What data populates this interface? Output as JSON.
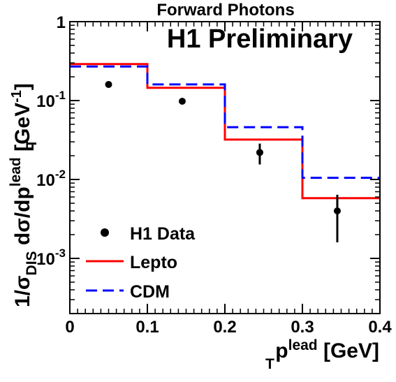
{
  "chart_data": {
    "type": "line",
    "title": "Forward Photons",
    "annotation": "H1 Preliminary",
    "xlabel": {
      "base": "p",
      "sub": "T",
      "sup": "lead",
      "unit": " [GeV]"
    },
    "ylabel": {
      "prefix": "1/σ",
      "prefix_sub": "DIS",
      "mid": " dσ/dp",
      "mid_sub": "T",
      "mid_sup": "lead",
      "unit": " [GeV",
      "unit_sup": "-1",
      "unit_close": "]"
    },
    "x_range": [
      0,
      0.4
    ],
    "y_range": [
      0.0002,
      1
    ],
    "y_scale": "log",
    "x_ticks": [
      {
        "value": 0,
        "label": "0"
      },
      {
        "value": 0.1,
        "label": "0.1"
      },
      {
        "value": 0.2,
        "label": "0.2"
      },
      {
        "value": 0.3,
        "label": "0.3"
      },
      {
        "value": 0.4,
        "label": "0.4"
      }
    ],
    "y_ticks": [
      {
        "value": 1,
        "label": "1"
      },
      {
        "value": 0.1,
        "label": "10",
        "sup": "-1"
      },
      {
        "value": 0.01,
        "label": "10",
        "sup": "-2"
      },
      {
        "value": 0.001,
        "label": "10",
        "sup": "-3"
      }
    ],
    "legend_position": "bottom-left",
    "bin_edges": [
      0,
      0.1,
      0.2,
      0.3,
      0.4
    ],
    "series": [
      {
        "name": "H1 Data",
        "style": "points",
        "color": "#000000",
        "x": [
          0.05,
          0.145,
          0.245,
          0.345
        ],
        "y": [
          0.16,
          0.098,
          0.022,
          0.004
        ],
        "y_err_low": [
          0.006,
          0.005,
          0.0065,
          0.0024
        ],
        "y_err_high": [
          0.006,
          0.005,
          0.0065,
          0.0024
        ]
      },
      {
        "name": "Lepto",
        "style": "step-solid",
        "color": "#ff0000",
        "values": [
          0.29,
          0.145,
          0.032,
          0.0058
        ]
      },
      {
        "name": "CDM",
        "style": "step-dashed",
        "color": "#0000ff",
        "values": [
          0.27,
          0.16,
          0.046,
          0.0105
        ]
      }
    ]
  }
}
